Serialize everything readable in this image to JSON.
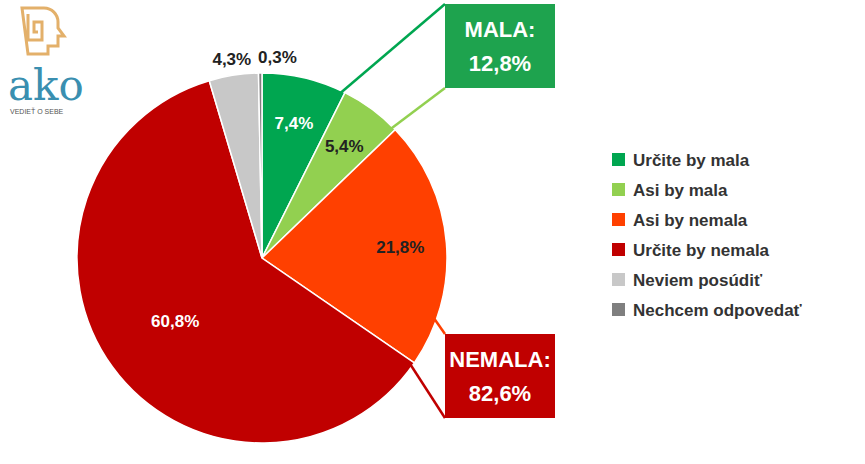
{
  "chart_data": {
    "type": "pie",
    "categories": [
      "Určite by mala",
      "Asi by mala",
      "Asi by nemala",
      "Určite by nemala",
      "Neviem posúdiť",
      "Nechcem odpovedať"
    ],
    "values": [
      7.4,
      5.4,
      21.8,
      60.8,
      4.3,
      0.3
    ],
    "value_labels": [
      "7,4%",
      "5,4%",
      "21,8%",
      "60,8%",
      "4,3%",
      "0,3%"
    ],
    "colors": [
      "#00a650",
      "#92d050",
      "#ff4000",
      "#c00000",
      "#c8c8c8",
      "#7f7f7f"
    ],
    "data_labels": true,
    "legend": "right",
    "annotations": [
      {
        "label": "MALA:",
        "value": 12.8,
        "value_label": "12,8%",
        "color": "#1ea34e"
      },
      {
        "label": "NEMALA:",
        "value": 82.6,
        "value_label": "82,6%",
        "color": "#c00000"
      }
    ],
    "logo": {
      "text": "ako",
      "tagline": "VEDIEŤ O SEBE"
    }
  }
}
